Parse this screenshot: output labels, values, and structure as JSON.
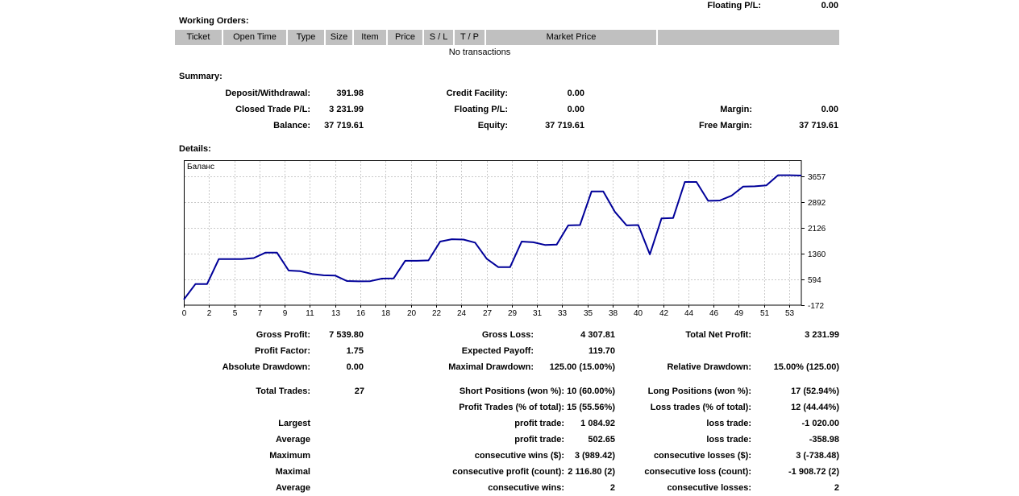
{
  "top_summary": {
    "label": "Floating P/L:",
    "value": "0.00"
  },
  "working_orders": {
    "title": "Working Orders:",
    "header_bg": "#c0c0c0",
    "columns": [
      "Ticket",
      "Open Time",
      "Type",
      "Size",
      "Item",
      "Price",
      "S / L",
      "T / P",
      "Market Price",
      ""
    ],
    "empty_message": "No transactions"
  },
  "summary": {
    "title": "Summary:",
    "rows": [
      [
        "Deposit/Withdrawal:",
        "391.98",
        "Credit Facility:",
        "0.00",
        "",
        ""
      ],
      [
        "Closed Trade P/L:",
        "3 231.99",
        "Floating P/L:",
        "0.00",
        "Margin:",
        "0.00"
      ],
      [
        "Balance:",
        "37 719.61",
        "Equity:",
        "37 719.61",
        "Free Margin:",
        "37 719.61"
      ]
    ]
  },
  "details": {
    "title": "Details:",
    "rows_a": [
      [
        "Gross Profit:",
        "7 539.80",
        "Gross Loss:",
        "4 307.81",
        "Total Net Profit:",
        "3 231.99"
      ],
      [
        "Profit Factor:",
        "1.75",
        "Expected Payoff:",
        "119.70",
        "",
        ""
      ],
      [
        "Absolute Drawdown:",
        "0.00",
        "Maximal Drawdown:",
        "125.00 (15.00%)",
        "Relative Drawdown:",
        "15.00% (125.00)"
      ]
    ],
    "rows_b": [
      [
        "Total Trades:",
        "27",
        "Short Positions (won %):",
        "10 (60.00%)",
        "Long Positions (won %):",
        "17 (52.94%)"
      ],
      [
        "",
        "",
        "Profit Trades (% of total):",
        "15 (55.56%)",
        "Loss trades (% of total):",
        "12 (44.44%)"
      ],
      [
        "Largest",
        "",
        "profit trade:",
        "1 084.92",
        "loss trade:",
        "-1 020.00"
      ],
      [
        "Average",
        "",
        "profit trade:",
        "502.65",
        "loss trade:",
        "-358.98"
      ],
      [
        "Maximum",
        "",
        "consecutive wins ($):",
        "3 (989.42)",
        "consecutive losses ($):",
        "3 (-738.48)"
      ],
      [
        "Maximal",
        "",
        "consecutive profit (count):",
        "2 116.80 (2)",
        "consecutive loss (count):",
        "-1 908.72 (2)"
      ],
      [
        "Average",
        "",
        "consecutive wins:",
        "2",
        "consecutive losses:",
        "2"
      ]
    ]
  },
  "chart_data": {
    "type": "line",
    "title": "",
    "legend": "Баланс",
    "legend_position": "top-left",
    "grid": "dashed",
    "line_color": "#000099",
    "grid_color": "#c9c9c9",
    "x_range": [
      0,
      53
    ],
    "x_ticks": [
      "0",
      "2",
      "5",
      "7",
      "9",
      "11",
      "13",
      "16",
      "18",
      "20",
      "22",
      "24",
      "27",
      "29",
      "31",
      "33",
      "35",
      "38",
      "40",
      "42",
      "44",
      "46",
      "49",
      "51",
      "53"
    ],
    "y_ticks": [
      3657,
      2892,
      2126,
      1360,
      594,
      -172
    ],
    "series": [
      {
        "name": "Баланс",
        "values": [
          0,
          460,
          460,
          1200,
          1200,
          1200,
          1230,
          1390,
          1390,
          860,
          840,
          760,
          720,
          710,
          550,
          540,
          545,
          620,
          625,
          1150,
          1150,
          1160,
          1720,
          1790,
          1780,
          1690,
          1210,
          960,
          960,
          1720,
          1700,
          1620,
          1630,
          2200,
          2210,
          3210,
          3210,
          2600,
          2200,
          2210,
          1340,
          2410,
          2420,
          3490,
          3490,
          2930,
          2940,
          3080,
          3350,
          3360,
          3390,
          3690,
          3690,
          3680
        ]
      }
    ]
  }
}
